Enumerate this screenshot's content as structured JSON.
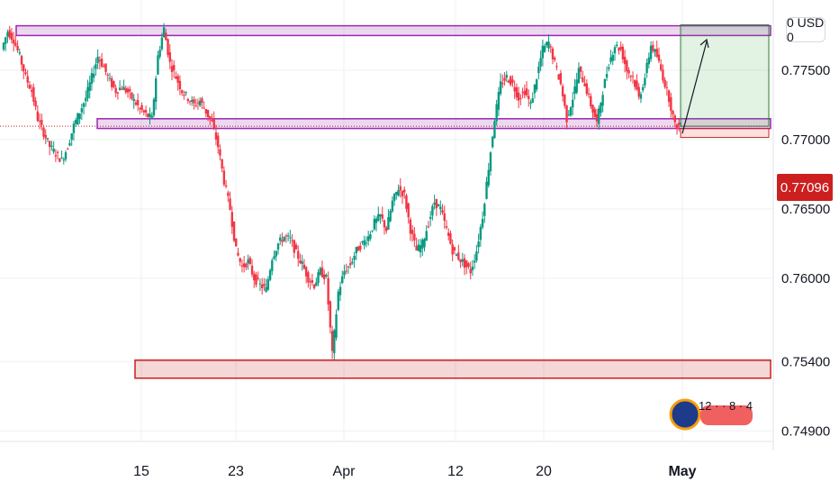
{
  "chart_data": {
    "type": "candlestick",
    "symbol_currency": "USD",
    "currency_badge": "0  USD 0",
    "last_price": "0.77096",
    "y_ticks": [
      "0.77500",
      "0.77000",
      "0.76500",
      "0.76000",
      "0.75400",
      "0.74900"
    ],
    "y_tick_values": [
      0.775,
      0.77,
      0.765,
      0.76,
      0.754,
      0.749
    ],
    "x_ticks": [
      "15",
      "23",
      "Apr",
      "12",
      "20",
      "May"
    ],
    "ylim": [
      0.7485,
      0.7785
    ],
    "grid": true,
    "zones": [
      {
        "name": "resistance",
        "from": 0.7775,
        "to": 0.7782,
        "color": "#9c27b0"
      },
      {
        "name": "support",
        "from": 0.7708,
        "to": 0.7715,
        "color": "#9c27b0"
      },
      {
        "name": "demand",
        "from": 0.7528,
        "to": 0.7541,
        "color": "#cc1f1f"
      }
    ],
    "target_box": {
      "from": 0.77096,
      "to": 0.7782
    },
    "stop_box": {
      "from": 0.7708,
      "to": 0.77096
    },
    "price_path": [
      0.7765,
      0.7778,
      0.7772,
      0.776,
      0.7745,
      0.7735,
      0.7715,
      0.7705,
      0.7695,
      0.769,
      0.7685,
      0.7695,
      0.771,
      0.772,
      0.773,
      0.7745,
      0.776,
      0.7752,
      0.7742,
      0.7735,
      0.7738,
      0.7734,
      0.7728,
      0.7722,
      0.7718,
      0.7715,
      0.776,
      0.778,
      0.7755,
      0.7745,
      0.7735,
      0.773,
      0.7725,
      0.7728,
      0.772,
      0.7712,
      0.7695,
      0.767,
      0.765,
      0.762,
      0.7608,
      0.7612,
      0.76,
      0.7595,
      0.7592,
      0.7615,
      0.7625,
      0.763,
      0.7628,
      0.7618,
      0.761,
      0.76,
      0.7595,
      0.7605,
      0.76,
      0.7545,
      0.759,
      0.7605,
      0.761,
      0.762,
      0.7625,
      0.763,
      0.764,
      0.7645,
      0.7635,
      0.7655,
      0.7665,
      0.766,
      0.7635,
      0.762,
      0.7625,
      0.764,
      0.7655,
      0.765,
      0.7635,
      0.762,
      0.7615,
      0.761,
      0.7605,
      0.762,
      0.7645,
      0.768,
      0.7715,
      0.774,
      0.7745,
      0.774,
      0.773,
      0.7735,
      0.7725,
      0.7745,
      0.7765,
      0.777,
      0.7755,
      0.774,
      0.7715,
      0.773,
      0.775,
      0.774,
      0.7725,
      0.7712,
      0.7735,
      0.7755,
      0.7768,
      0.7765,
      0.775,
      0.7745,
      0.773,
      0.7745,
      0.7768,
      0.776,
      0.7745,
      0.773,
      0.771
    ],
    "logo_text": "12 · · 8 · 4"
  }
}
